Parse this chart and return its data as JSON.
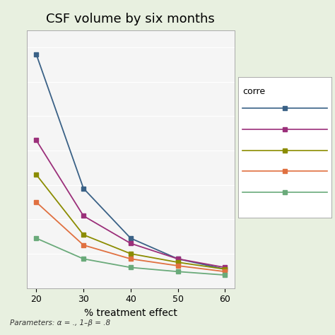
{
  "title": "CSF volume by six months",
  "xlabel": "% treatment effect",
  "footer": "Parameters: α = ., 1–β = .8",
  "legend_title": "corre",
  "x": [
    20,
    30,
    40,
    50,
    60
  ],
  "series": [
    {
      "color": "#3a6186",
      "marker": "s",
      "y": [
        780,
        390,
        245,
        185,
        155
      ]
    },
    {
      "color": "#9b2f7a",
      "marker": "s",
      "y": [
        530,
        310,
        230,
        185,
        160
      ]
    },
    {
      "color": "#8b8c00",
      "marker": "s",
      "y": [
        430,
        255,
        200,
        175,
        155
      ]
    },
    {
      "color": "#e07040",
      "marker": "s",
      "y": [
        350,
        225,
        185,
        165,
        148
      ]
    },
    {
      "color": "#6aaa7a",
      "marker": "s",
      "y": [
        245,
        185,
        160,
        148,
        138
      ]
    }
  ],
  "ylim": [
    100,
    850
  ],
  "xlim": [
    18,
    62
  ],
  "background_color": "#e8f0e0",
  "plot_bg_color": "#f5f5f5",
  "legend_bg": "#ffffff"
}
